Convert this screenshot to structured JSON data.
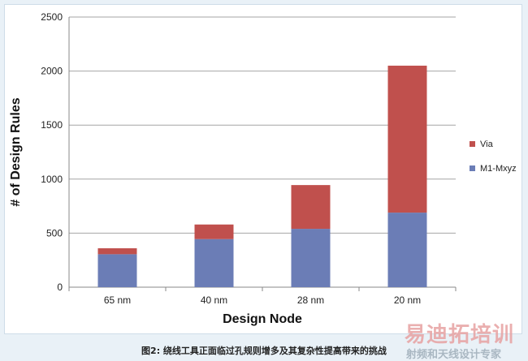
{
  "chart_data": {
    "type": "bar",
    "stacked": true,
    "categories": [
      "65 nm",
      "40 nm",
      "28 nm",
      "20 nm"
    ],
    "series": [
      {
        "name": "M1-Mxyz",
        "values": [
          305,
          445,
          540,
          690
        ],
        "color": "#6b7db6"
      },
      {
        "name": "Via",
        "values": [
          55,
          135,
          405,
          1360
        ],
        "color": "#c0504d"
      }
    ],
    "xlabel": "Design Node",
    "ylabel": "# of Design Rules",
    "ylim": [
      0,
      2500
    ],
    "yticks": [
      0,
      500,
      1000,
      1500,
      2000,
      2500
    ],
    "grid": true,
    "legend_position": "right"
  },
  "caption": "图2: 绕线工具正面临过孔规则增多及其复杂性提高带来的挑战",
  "watermark": {
    "main": "易迪拓培训",
    "sub": "射频和天线设计专家"
  }
}
